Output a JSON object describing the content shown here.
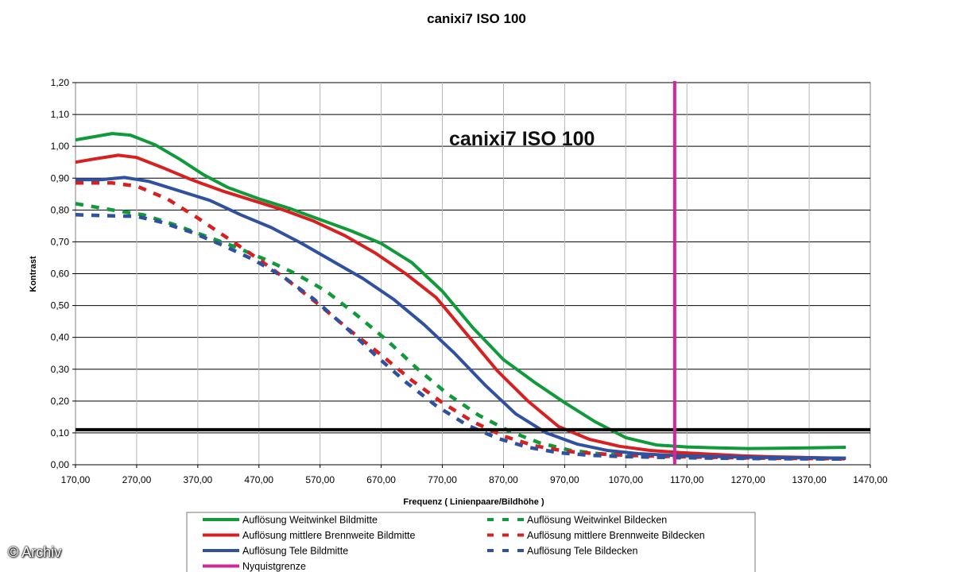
{
  "chart_data": {
    "type": "line",
    "title": "canixi7 ISO 100",
    "inner_title": "canixi7 ISO 100",
    "xlabel": "Frequenz ( Linienpaare/Bildhöhe )",
    "ylabel": "Kontrast",
    "xlim": [
      170,
      1470
    ],
    "ylim": [
      0,
      1.2
    ],
    "x_ticks": [
      "170,00",
      "270,00",
      "370,00",
      "470,00",
      "570,00",
      "670,00",
      "770,00",
      "870,00",
      "970,00",
      "1070,00",
      "1170,00",
      "1270,00",
      "1370,00",
      "1470,00"
    ],
    "y_ticks": [
      "0,00",
      "0,10",
      "0,20",
      "0,30",
      "0,40",
      "0,50",
      "0,60",
      "0,70",
      "0,80",
      "0,90",
      "1,00",
      "1,10",
      "1,20"
    ],
    "grid": true,
    "legend_position": "bottom",
    "threshold_line": 0.11,
    "nyquist_x": 1150,
    "series": [
      {
        "name": "Auflösung Weitwinkel Bildmitte",
        "color": "#119a3a",
        "dashed": false,
        "points": [
          [
            170,
            1.02
          ],
          [
            200,
            1.03
          ],
          [
            230,
            1.04
          ],
          [
            260,
            1.035
          ],
          [
            300,
            1.005
          ],
          [
            340,
            0.96
          ],
          [
            380,
            0.91
          ],
          [
            420,
            0.87
          ],
          [
            470,
            0.835
          ],
          [
            520,
            0.805
          ],
          [
            570,
            0.77
          ],
          [
            620,
            0.735
          ],
          [
            670,
            0.695
          ],
          [
            720,
            0.635
          ],
          [
            770,
            0.545
          ],
          [
            820,
            0.43
          ],
          [
            870,
            0.33
          ],
          [
            920,
            0.26
          ],
          [
            970,
            0.195
          ],
          [
            1020,
            0.135
          ],
          [
            1070,
            0.085
          ],
          [
            1120,
            0.062
          ],
          [
            1170,
            0.056
          ],
          [
            1220,
            0.053
          ],
          [
            1270,
            0.051
          ],
          [
            1320,
            0.052
          ],
          [
            1370,
            0.053
          ],
          [
            1430,
            0.055
          ]
        ]
      },
      {
        "name": "Auflösung Weitwinkel Bildecken",
        "color": "#119a3a",
        "dashed": true,
        "points": [
          [
            170,
            0.82
          ],
          [
            230,
            0.8
          ],
          [
            280,
            0.785
          ],
          [
            330,
            0.755
          ],
          [
            380,
            0.72
          ],
          [
            430,
            0.685
          ],
          [
            480,
            0.645
          ],
          [
            530,
            0.6
          ],
          [
            580,
            0.545
          ],
          [
            630,
            0.47
          ],
          [
            680,
            0.39
          ],
          [
            730,
            0.3
          ],
          [
            780,
            0.22
          ],
          [
            830,
            0.155
          ],
          [
            880,
            0.105
          ],
          [
            930,
            0.068
          ],
          [
            980,
            0.045
          ],
          [
            1030,
            0.034
          ],
          [
            1080,
            0.029
          ],
          [
            1130,
            0.026
          ],
          [
            1180,
            0.024
          ],
          [
            1230,
            0.022
          ],
          [
            1280,
            0.021
          ],
          [
            1330,
            0.02
          ],
          [
            1380,
            0.019
          ],
          [
            1430,
            0.018
          ]
        ]
      },
      {
        "name": "Auflösung mittlere Brennweite Bildmitte",
        "color": "#d82020",
        "dashed": false,
        "points": [
          [
            170,
            0.95
          ],
          [
            200,
            0.96
          ],
          [
            240,
            0.972
          ],
          [
            270,
            0.965
          ],
          [
            310,
            0.935
          ],
          [
            360,
            0.895
          ],
          [
            410,
            0.86
          ],
          [
            460,
            0.83
          ],
          [
            510,
            0.8
          ],
          [
            560,
            0.765
          ],
          [
            610,
            0.72
          ],
          [
            660,
            0.665
          ],
          [
            710,
            0.6
          ],
          [
            760,
            0.525
          ],
          [
            810,
            0.41
          ],
          [
            860,
            0.295
          ],
          [
            910,
            0.2
          ],
          [
            960,
            0.12
          ],
          [
            1010,
            0.08
          ],
          [
            1060,
            0.058
          ],
          [
            1110,
            0.045
          ],
          [
            1160,
            0.038
          ],
          [
            1210,
            0.033
          ],
          [
            1260,
            0.028
          ],
          [
            1310,
            0.025
          ],
          [
            1360,
            0.023
          ],
          [
            1430,
            0.02
          ]
        ]
      },
      {
        "name": "Auflösung mittlere Brennweite Bildecken",
        "color": "#d82020",
        "dashed": true,
        "points": [
          [
            170,
            0.885
          ],
          [
            230,
            0.885
          ],
          [
            270,
            0.875
          ],
          [
            320,
            0.835
          ],
          [
            370,
            0.775
          ],
          [
            420,
            0.71
          ],
          [
            470,
            0.645
          ],
          [
            520,
            0.575
          ],
          [
            570,
            0.5
          ],
          [
            620,
            0.42
          ],
          [
            670,
            0.345
          ],
          [
            720,
            0.265
          ],
          [
            770,
            0.195
          ],
          [
            820,
            0.135
          ],
          [
            870,
            0.09
          ],
          [
            920,
            0.06
          ],
          [
            970,
            0.043
          ],
          [
            1020,
            0.035
          ],
          [
            1070,
            0.03
          ],
          [
            1120,
            0.027
          ],
          [
            1170,
            0.025
          ],
          [
            1230,
            0.023
          ],
          [
            1290,
            0.021
          ],
          [
            1350,
            0.02
          ],
          [
            1430,
            0.019
          ]
        ]
      },
      {
        "name": "Auflösung Tele Bildmitte",
        "color": "#3050a0",
        "dashed": false,
        "points": [
          [
            170,
            0.895
          ],
          [
            210,
            0.895
          ],
          [
            250,
            0.902
          ],
          [
            290,
            0.89
          ],
          [
            340,
            0.86
          ],
          [
            390,
            0.83
          ],
          [
            440,
            0.785
          ],
          [
            490,
            0.745
          ],
          [
            540,
            0.695
          ],
          [
            590,
            0.64
          ],
          [
            640,
            0.585
          ],
          [
            690,
            0.52
          ],
          [
            740,
            0.44
          ],
          [
            790,
            0.35
          ],
          [
            840,
            0.25
          ],
          [
            890,
            0.16
          ],
          [
            940,
            0.1
          ],
          [
            990,
            0.065
          ],
          [
            1040,
            0.045
          ],
          [
            1090,
            0.035
          ],
          [
            1140,
            0.03
          ],
          [
            1190,
            0.027
          ],
          [
            1240,
            0.025
          ],
          [
            1290,
            0.023
          ],
          [
            1350,
            0.022
          ],
          [
            1430,
            0.021
          ]
        ]
      },
      {
        "name": "Auflösung Tele Bildecken",
        "color": "#3050a0",
        "dashed": true,
        "points": [
          [
            170,
            0.785
          ],
          [
            220,
            0.782
          ],
          [
            270,
            0.78
          ],
          [
            310,
            0.762
          ],
          [
            360,
            0.73
          ],
          [
            410,
            0.69
          ],
          [
            460,
            0.645
          ],
          [
            510,
            0.59
          ],
          [
            560,
            0.52
          ],
          [
            610,
            0.435
          ],
          [
            660,
            0.345
          ],
          [
            710,
            0.26
          ],
          [
            760,
            0.185
          ],
          [
            810,
            0.125
          ],
          [
            860,
            0.083
          ],
          [
            910,
            0.055
          ],
          [
            960,
            0.038
          ],
          [
            1010,
            0.03
          ],
          [
            1060,
            0.026
          ],
          [
            1110,
            0.024
          ],
          [
            1160,
            0.022
          ],
          [
            1210,
            0.021
          ],
          [
            1260,
            0.02
          ],
          [
            1320,
            0.019
          ],
          [
            1430,
            0.018
          ]
        ]
      },
      {
        "name": "Nyquistgrenze",
        "color": "#d0289a",
        "dashed": false,
        "points": []
      }
    ]
  },
  "watermark": "© Archiv"
}
